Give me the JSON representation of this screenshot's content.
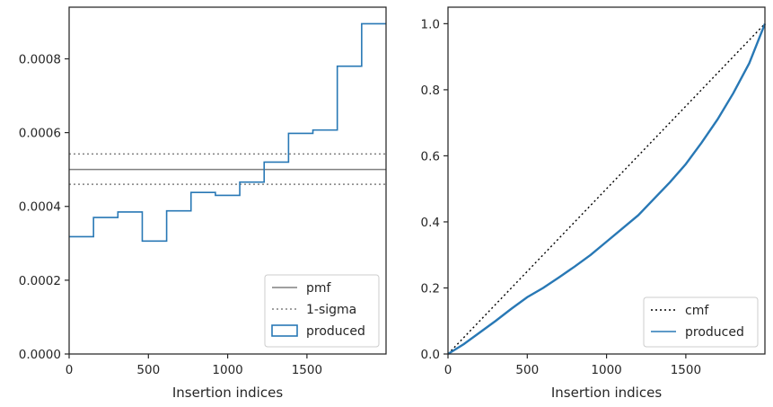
{
  "chart_data": [
    {
      "type": "line",
      "xlabel": "Insertion indices",
      "ylabel": "",
      "xlim": [
        0,
        1999
      ],
      "ylim": [
        0,
        0.00094
      ],
      "xticks": [
        0,
        500,
        1000,
        1500
      ],
      "xtick_labels": [
        "0",
        "500",
        "1000",
        "1500"
      ],
      "yticks": [
        0,
        0.0002,
        0.0004,
        0.0006,
        0.0008
      ],
      "ytick_labels": [
        "0.0000",
        "0.0002",
        "0.0004",
        "0.0006",
        "0.0008"
      ],
      "legend_position": "lower-right",
      "series": [
        {
          "name": "pmf",
          "kind": "hline",
          "y": 0.0005,
          "color": "#808080",
          "style": "solid"
        },
        {
          "name": "1-sigma",
          "kind": "hlines",
          "y": [
            0.00046,
            0.000542
          ],
          "color": "#808080",
          "style": "dotted"
        },
        {
          "name": "produced",
          "kind": "step",
          "color": "#2878b5",
          "bin_edges": [
            0,
            153.8,
            307.5,
            461.3,
            615,
            768.8,
            922.6,
            1076.3,
            1230.1,
            1383.9,
            1537.6,
            1691.4,
            1845.2,
            1999
          ],
          "values": [
            0.000318,
            0.00037,
            0.000385,
            0.000306,
            0.000388,
            0.000438,
            0.00043,
            0.000466,
            0.00052,
            0.000598,
            0.000607,
            0.00078,
            0.000895
          ]
        }
      ]
    },
    {
      "type": "line",
      "xlabel": "Insertion indices",
      "ylabel": "",
      "xlim": [
        0,
        1999
      ],
      "ylim": [
        0,
        1.05
      ],
      "xticks": [
        0,
        500,
        1000,
        1500
      ],
      "xtick_labels": [
        "0",
        "500",
        "1000",
        "1500"
      ],
      "yticks": [
        0,
        0.2,
        0.4,
        0.6,
        0.8,
        1.0
      ],
      "ytick_labels": [
        "0.0",
        "0.2",
        "0.4",
        "0.6",
        "0.8",
        "1.0"
      ],
      "legend_position": "lower-right",
      "series": [
        {
          "name": "cmf",
          "kind": "line",
          "x": [
            0,
            1999
          ],
          "y": [
            0,
            1.0
          ],
          "color": "#000000",
          "style": "dotted"
        },
        {
          "name": "produced",
          "kind": "line",
          "color": "#2878b5",
          "x": [
            0,
            100,
            200,
            300,
            400,
            500,
            600,
            700,
            800,
            900,
            1000,
            1100,
            1200,
            1300,
            1400,
            1500,
            1600,
            1700,
            1800,
            1900,
            1999
          ],
          "y": [
            0,
            0.03,
            0.065,
            0.1,
            0.137,
            0.172,
            0.2,
            0.232,
            0.265,
            0.3,
            0.34,
            0.38,
            0.42,
            0.47,
            0.52,
            0.575,
            0.64,
            0.71,
            0.79,
            0.88,
            1.0
          ]
        }
      ]
    }
  ]
}
